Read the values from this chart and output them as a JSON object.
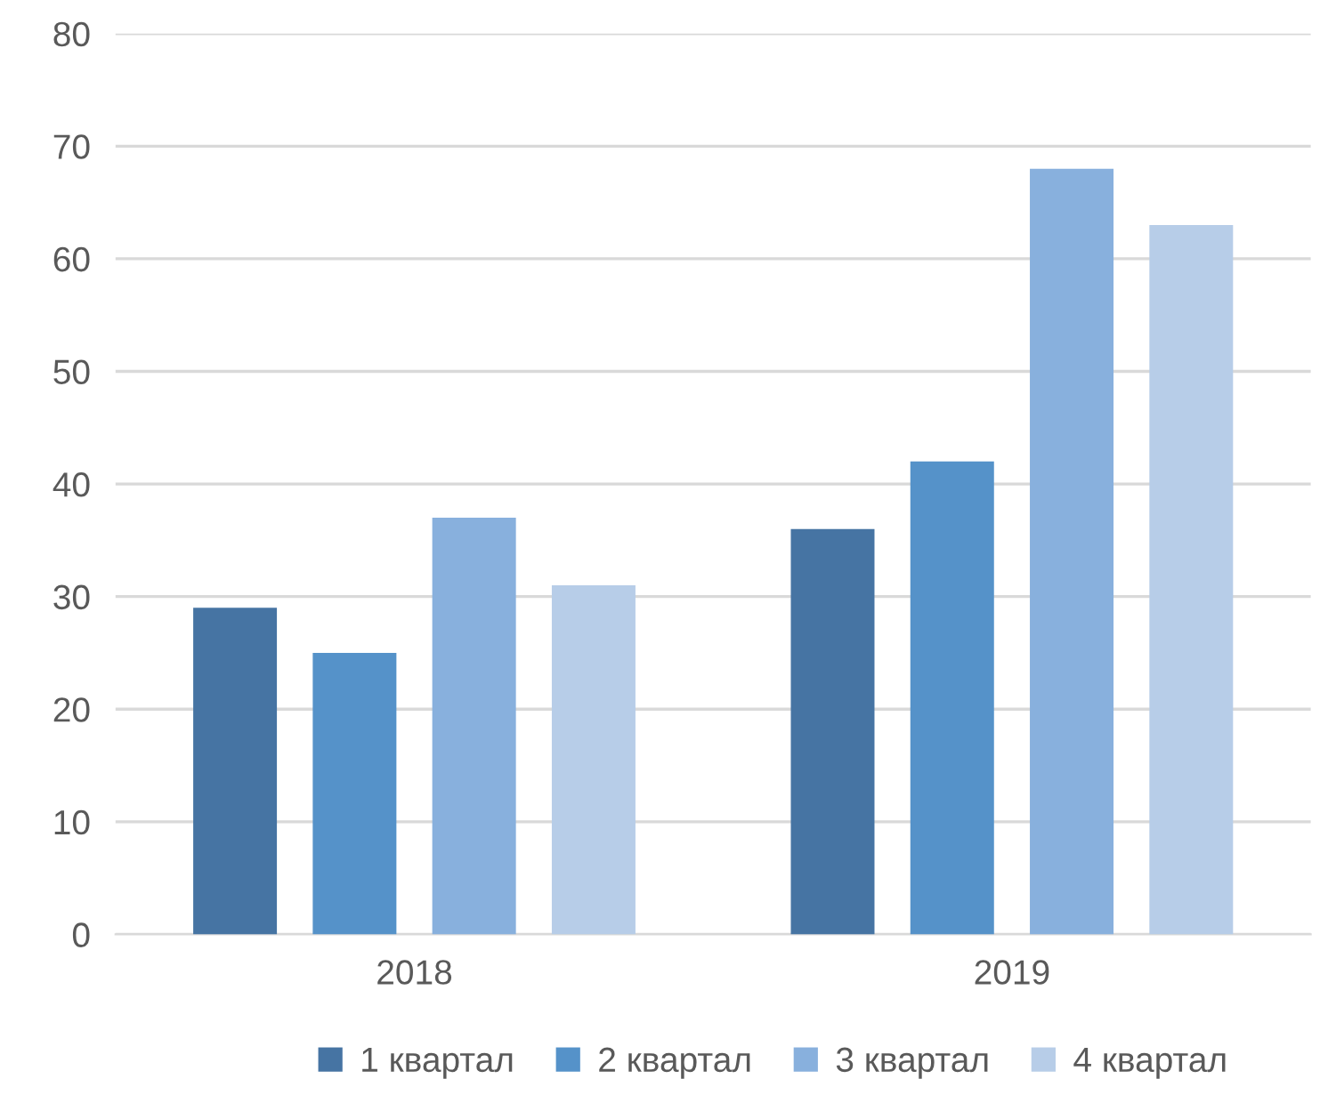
{
  "chart_data": {
    "type": "bar",
    "categories": [
      "2018",
      "2019"
    ],
    "series": [
      {
        "name": "1 квартал",
        "color": "#4674a3",
        "values": [
          29,
          36
        ]
      },
      {
        "name": "2 квартал",
        "color": "#5592c9",
        "values": [
          25,
          42
        ]
      },
      {
        "name": "3 квартал",
        "color": "#88b0dd",
        "values": [
          37,
          68
        ]
      },
      {
        "name": "4 квартал",
        "color": "#b7cde8",
        "values": [
          31,
          63
        ]
      }
    ],
    "ylim": [
      0,
      80
    ],
    "yticks": [
      0,
      10,
      20,
      30,
      40,
      50,
      60,
      70,
      80
    ],
    "grid": "y",
    "legend": "bottom"
  }
}
